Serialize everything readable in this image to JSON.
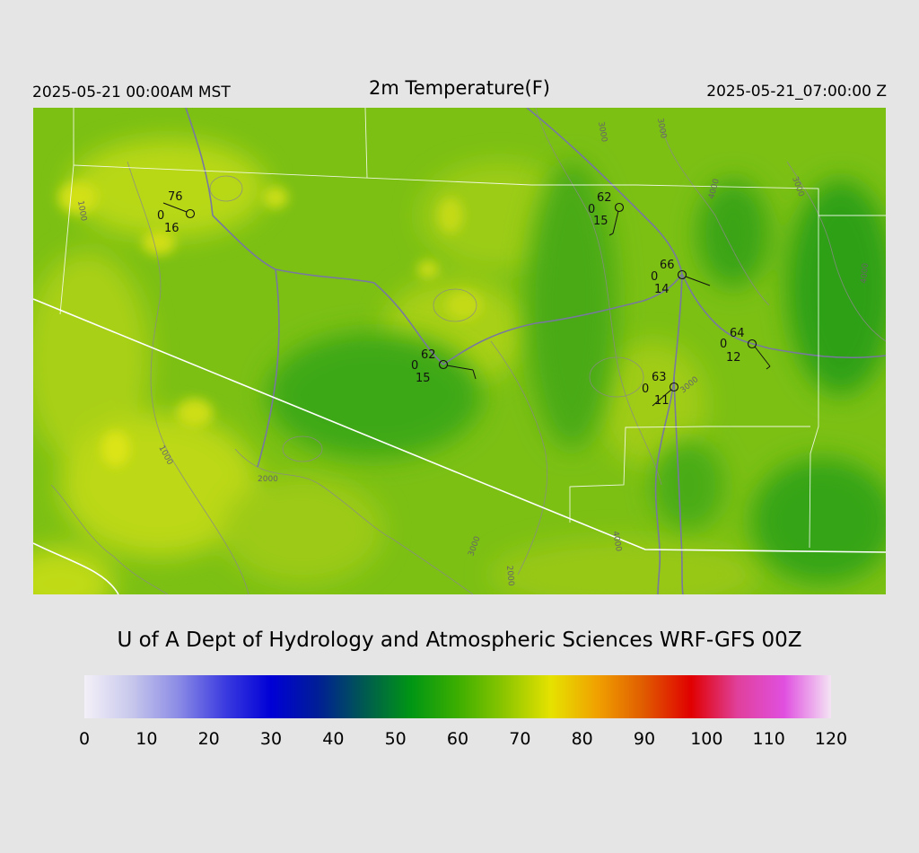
{
  "header": {
    "local_time": "2025-05-21 00:00AM MST",
    "title": "2m Temperature(F)",
    "utc_time": "2025-05-21_07:00:00 Z"
  },
  "footer": {
    "credit": "U of A Dept of Hydrology and Atmospheric Sciences WRF-GFS 00Z"
  },
  "colorbar": {
    "ticks": [
      "0",
      "10",
      "20",
      "30",
      "40",
      "50",
      "60",
      "70",
      "80",
      "90",
      "100",
      "110",
      "120"
    ],
    "colors": [
      "#f4f0f8",
      "#c8c8ec",
      "#8c8ce6",
      "#3c3ce0",
      "#0000d6",
      "#001e96",
      "#005a50",
      "#009614",
      "#3cae00",
      "#8cc600",
      "#e6e200",
      "#f0a000",
      "#e05a00",
      "#e00000",
      "#e0409c",
      "#e050e0",
      "#f4e4f4"
    ]
  },
  "stations": [
    {
      "temp": "76",
      "dew": "16",
      "wind": "0"
    },
    {
      "temp": "62",
      "dew": "15",
      "wind": "0"
    },
    {
      "temp": "66",
      "dew": "14",
      "wind": "0"
    },
    {
      "temp": "62",
      "dew": "15",
      "wind": "0"
    },
    {
      "temp": "64",
      "dew": "12",
      "wind": "0"
    },
    {
      "temp": "63",
      "dew": "11",
      "wind": "0"
    }
  ],
  "contour_labels": [
    "1000",
    "1000",
    "2000",
    "3000",
    "3000",
    "4000",
    "3000",
    "4000",
    "3000",
    "3000",
    "4000",
    "2000"
  ],
  "map_colors": {
    "field": "#7cc014",
    "warm": "#c8dc14",
    "cool": "#38a814",
    "boundary": "#ffffff",
    "highway": "#7878a0",
    "contour": "#8a8a8a"
  }
}
